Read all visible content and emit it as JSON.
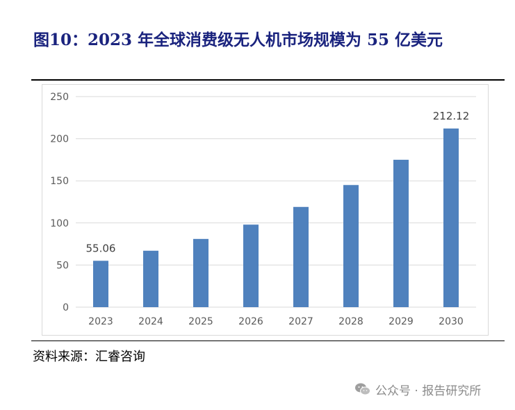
{
  "title": "图10：2023 年全球消费级无人机市场规模为 55 亿美元",
  "source": "资料来源：汇睿咨询",
  "watermark": {
    "icon": "wechat-icon",
    "text": "公众号 · 报告研究所"
  },
  "colors": {
    "bar": "#4f81bd",
    "title": "#1a237e",
    "grid": "#d9d9d9",
    "axis_text": "#595959"
  },
  "chart_data": {
    "type": "bar",
    "categories": [
      "2023",
      "2024",
      "2025",
      "2026",
      "2027",
      "2028",
      "2029",
      "2030"
    ],
    "values": [
      55.06,
      67,
      81,
      98,
      119,
      145,
      175,
      212.12
    ],
    "data_labels": [
      "55.06",
      "",
      "",
      "",
      "",
      "",
      "",
      "212.12"
    ],
    "ylim": [
      0,
      250
    ],
    "yticks": [
      0,
      50,
      100,
      150,
      200,
      250
    ],
    "grid": true,
    "legend": "none",
    "xlabel": "",
    "ylabel": ""
  }
}
